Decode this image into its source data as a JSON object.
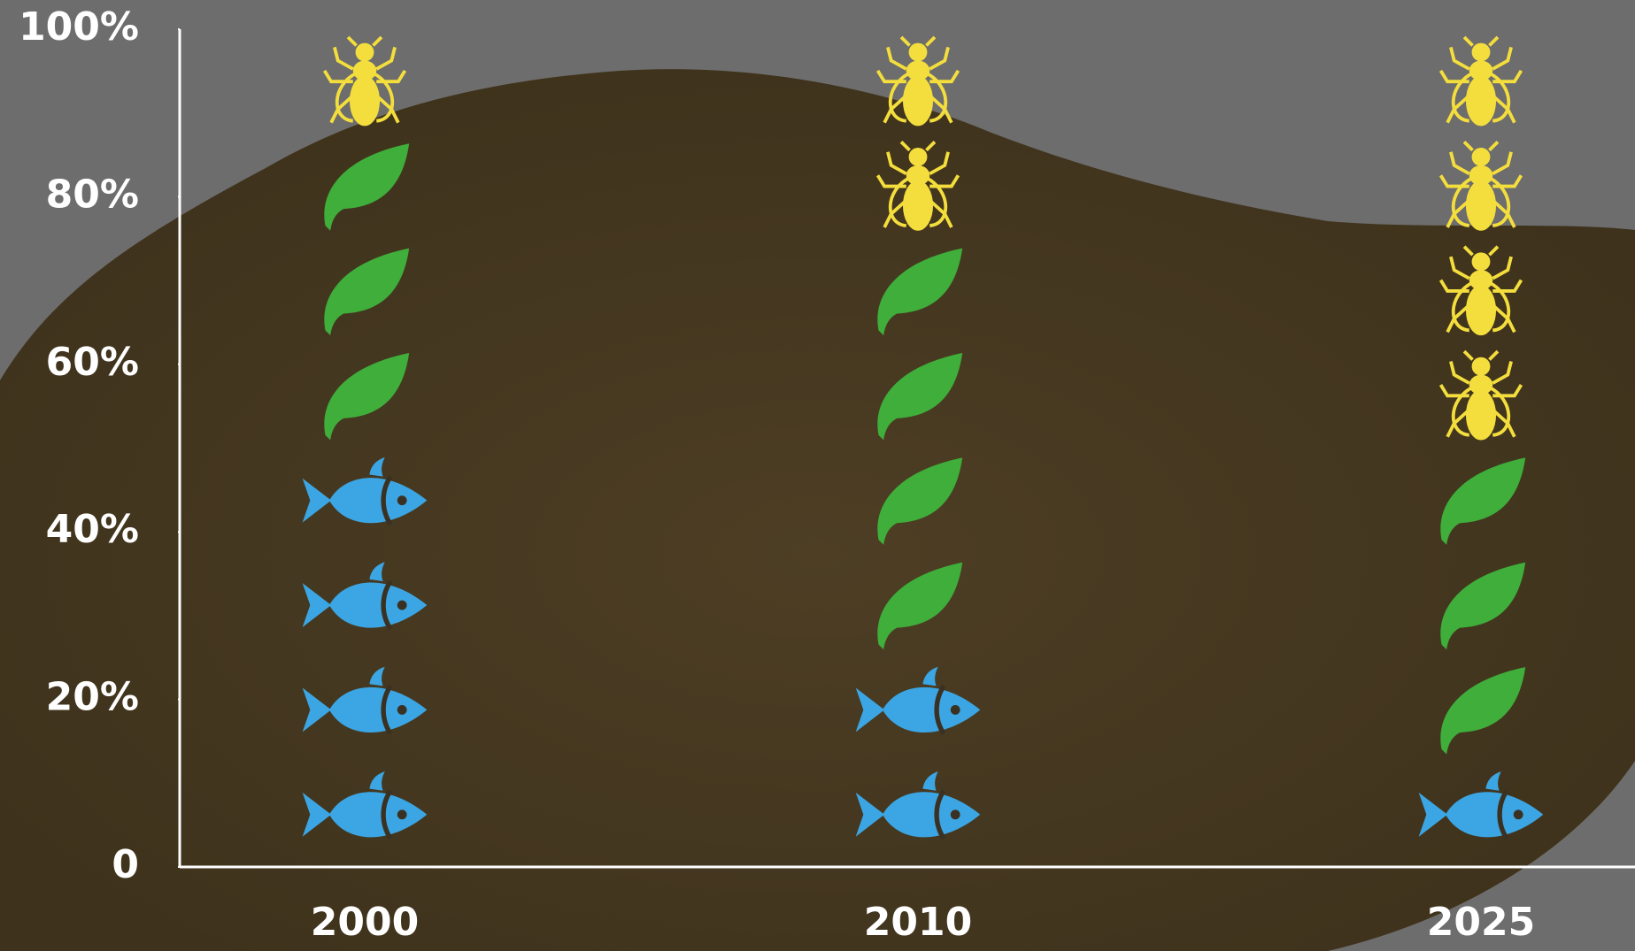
{
  "chart_data": {
    "type": "pictograph",
    "categories": [
      "2000",
      "2010",
      "2025"
    ],
    "series": [
      {
        "icon": "fish",
        "color": "#3ba6e3",
        "values": [
          50,
          25,
          12.5
        ]
      },
      {
        "icon": "leaf",
        "color": "#3fae3a",
        "values": [
          37.5,
          50,
          37.5
        ]
      },
      {
        "icon": "bug",
        "color": "#f4de3d",
        "values": [
          12.5,
          25,
          50
        ]
      }
    ],
    "icon_unit": 12.5,
    "ylim": [
      0,
      100
    ],
    "yticks": [
      0,
      {
        "value": 20,
        "label": "20%"
      },
      {
        "value": 40,
        "label": "40%"
      },
      {
        "value": 60,
        "label": "60%"
      },
      {
        "value": 80,
        "label": "80%"
      },
      {
        "value": 100,
        "label": "100%"
      }
    ],
    "axis_color": "#ffffff"
  }
}
